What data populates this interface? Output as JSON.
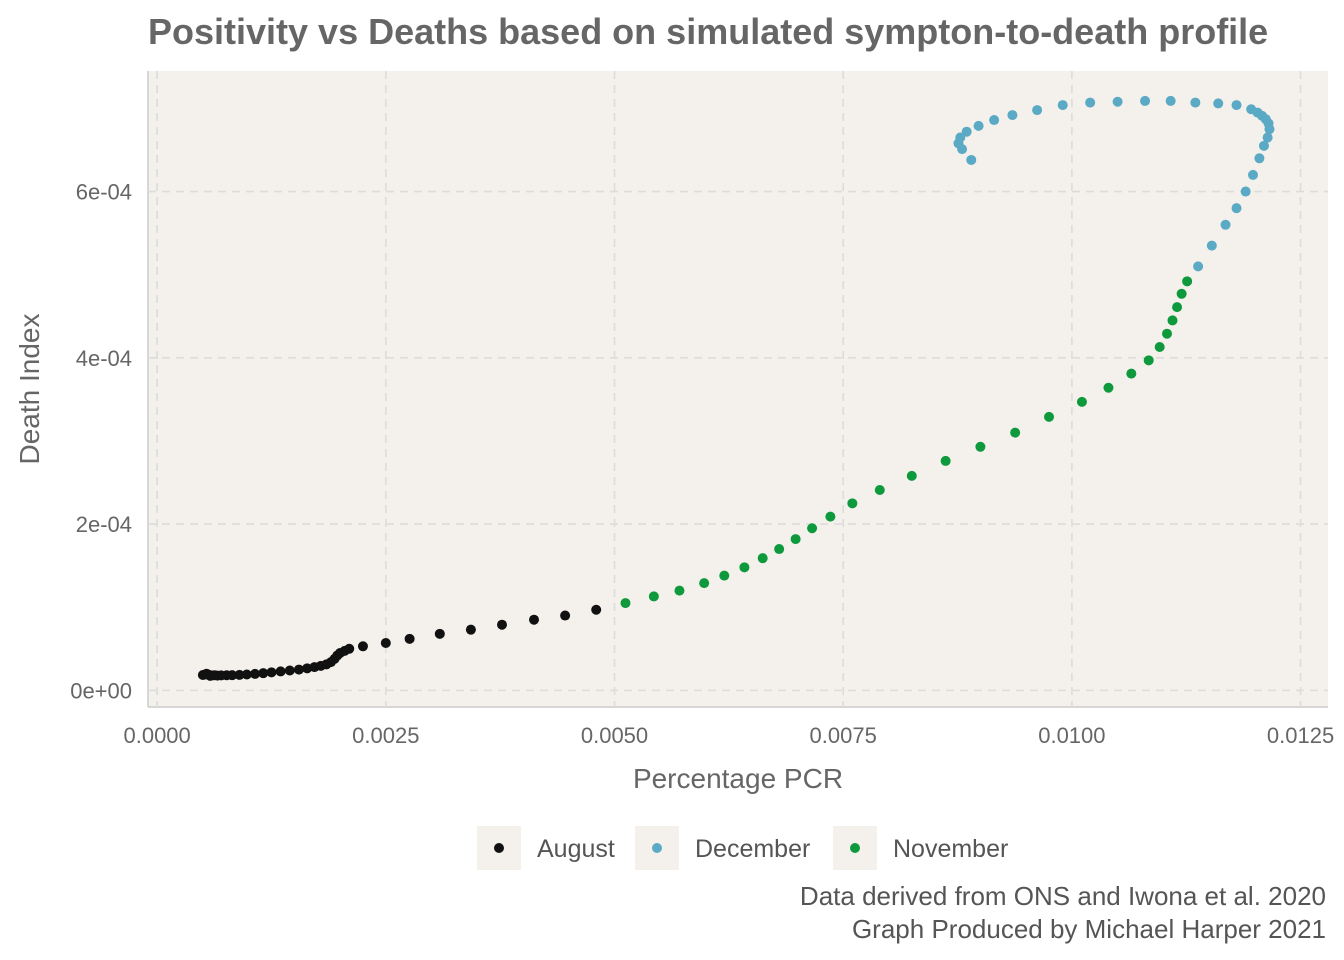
{
  "chart_data": {
    "type": "scatter",
    "title": "Positivity vs Deaths based on simulated sympton-to-death profile",
    "xlabel": "Percentage PCR",
    "ylabel": "Death Index",
    "xlim": [
      -0.0001,
      0.0128
    ],
    "ylim": [
      -2e-05,
      0.000745
    ],
    "x_ticks": [
      0,
      0.0025,
      0.005,
      0.0075,
      0.01,
      0.0125
    ],
    "x_tick_labels": [
      "0.0000",
      "0.0025",
      "0.0050",
      "0.0075",
      "0.0100",
      "0.0125"
    ],
    "y_ticks": [
      0,
      0.0002,
      0.0004,
      0.0006
    ],
    "y_tick_labels": [
      "0e+00",
      "2e-04",
      "4e-04",
      "6e-04"
    ],
    "grid": true,
    "legend_position": "bottom",
    "series": [
      {
        "name": "August",
        "color": "#111111",
        "points": [
          [
            0.0005,
            1.85e-05
          ],
          [
            0.00052,
            1.9e-05
          ],
          [
            0.00054,
            2e-05
          ],
          [
            0.00056,
            1.9e-05
          ],
          [
            0.00058,
            1.75e-05
          ],
          [
            0.0006,
            1.8e-05
          ],
          [
            0.00063,
            1.82e-05
          ],
          [
            0.00066,
            1.78e-05
          ],
          [
            0.0007,
            1.8e-05
          ],
          [
            0.00076,
            1.82e-05
          ],
          [
            0.00082,
            1.83e-05
          ],
          [
            0.0009,
            1.86e-05
          ],
          [
            0.00098,
            1.91e-05
          ],
          [
            0.00107,
            1.98e-05
          ],
          [
            0.00116,
            2.07e-05
          ],
          [
            0.00125,
            2.17e-05
          ],
          [
            0.00135,
            2.28e-05
          ],
          [
            0.00145,
            2.39e-05
          ],
          [
            0.00155,
            2.5e-05
          ],
          [
            0.00164,
            2.65e-05
          ],
          [
            0.00172,
            2.8e-05
          ],
          [
            0.00179,
            2.95e-05
          ],
          [
            0.00185,
            3.12e-05
          ],
          [
            0.0019,
            3.4e-05
          ],
          [
            0.00194,
            3.8e-05
          ],
          [
            0.00197,
            4.2e-05
          ],
          [
            0.002,
            4.5e-05
          ],
          [
            0.00205,
            4.75e-05
          ],
          [
            0.0021,
            5e-05
          ],
          [
            0.00225,
            5.3e-05
          ],
          [
            0.0025,
            5.7e-05
          ],
          [
            0.00276,
            6.2e-05
          ],
          [
            0.00309,
            6.8e-05
          ],
          [
            0.00343,
            7.3e-05
          ],
          [
            0.00377,
            7.9e-05
          ],
          [
            0.00412,
            8.5e-05
          ],
          [
            0.00446,
            9e-05
          ],
          [
            0.0048,
            9.7e-05
          ]
        ]
      },
      {
        "name": "December",
        "color": "#5aaac6",
        "points": [
          [
            0.01138,
            0.00051
          ],
          [
            0.01153,
            0.000535
          ],
          [
            0.01168,
            0.00056
          ],
          [
            0.0118,
            0.00058
          ],
          [
            0.0119,
            0.0006
          ],
          [
            0.01198,
            0.00062
          ],
          [
            0.01205,
            0.00064
          ],
          [
            0.0121,
            0.000655
          ],
          [
            0.01214,
            0.000665
          ],
          [
            0.01216,
            0.000675
          ],
          [
            0.01215,
            0.000682
          ],
          [
            0.01212,
            0.000687
          ],
          [
            0.01208,
            0.000691
          ],
          [
            0.01203,
            0.000695
          ],
          [
            0.01196,
            0.000699
          ],
          [
            0.0118,
            0.000704
          ],
          [
            0.0116,
            0.000706
          ],
          [
            0.01135,
            0.000707
          ],
          [
            0.01108,
            0.000709
          ],
          [
            0.0108,
            0.000709
          ],
          [
            0.0105,
            0.000708
          ],
          [
            0.0102,
            0.000707
          ],
          [
            0.0099,
            0.000704
          ],
          [
            0.00962,
            0.000698
          ],
          [
            0.00935,
            0.000692
          ],
          [
            0.00915,
            0.000686
          ],
          [
            0.00898,
            0.000679
          ],
          [
            0.00885,
            0.000672
          ],
          [
            0.00878,
            0.000665
          ],
          [
            0.00876,
            0.000658
          ],
          [
            0.0088,
            0.000651
          ],
          [
            0.0089,
            0.000638
          ]
        ]
      },
      {
        "name": "November",
        "color": "#0e9a3c",
        "points": [
          [
            0.00512,
            0.000105
          ],
          [
            0.00543,
            0.000113
          ],
          [
            0.00571,
            0.00012
          ],
          [
            0.00598,
            0.000129
          ],
          [
            0.0062,
            0.000138
          ],
          [
            0.00642,
            0.000148
          ],
          [
            0.00662,
            0.000159
          ],
          [
            0.0068,
            0.00017
          ],
          [
            0.00698,
            0.000182
          ],
          [
            0.00716,
            0.000195
          ],
          [
            0.00736,
            0.000209
          ],
          [
            0.0076,
            0.000225
          ],
          [
            0.0079,
            0.000241
          ],
          [
            0.00825,
            0.000258
          ],
          [
            0.00862,
            0.000276
          ],
          [
            0.009,
            0.000293
          ],
          [
            0.00938,
            0.00031
          ],
          [
            0.00975,
            0.000329
          ],
          [
            0.01011,
            0.000347
          ],
          [
            0.0104,
            0.000364
          ],
          [
            0.01065,
            0.000381
          ],
          [
            0.01084,
            0.000397
          ],
          [
            0.01096,
            0.000413
          ],
          [
            0.01104,
            0.000429
          ],
          [
            0.0111,
            0.000445
          ],
          [
            0.01115,
            0.000461
          ],
          [
            0.0112,
            0.000477
          ],
          [
            0.01126,
            0.000492
          ]
        ]
      }
    ]
  },
  "caption": {
    "line1": "Data derived from ONS and Iwona et al. 2020",
    "line2": "Graph Produced by Michael Harper 2021"
  },
  "colors": {
    "panel_background": "#f4f0eb",
    "axis_text": "#666666",
    "grid": "#dcdcdc"
  }
}
